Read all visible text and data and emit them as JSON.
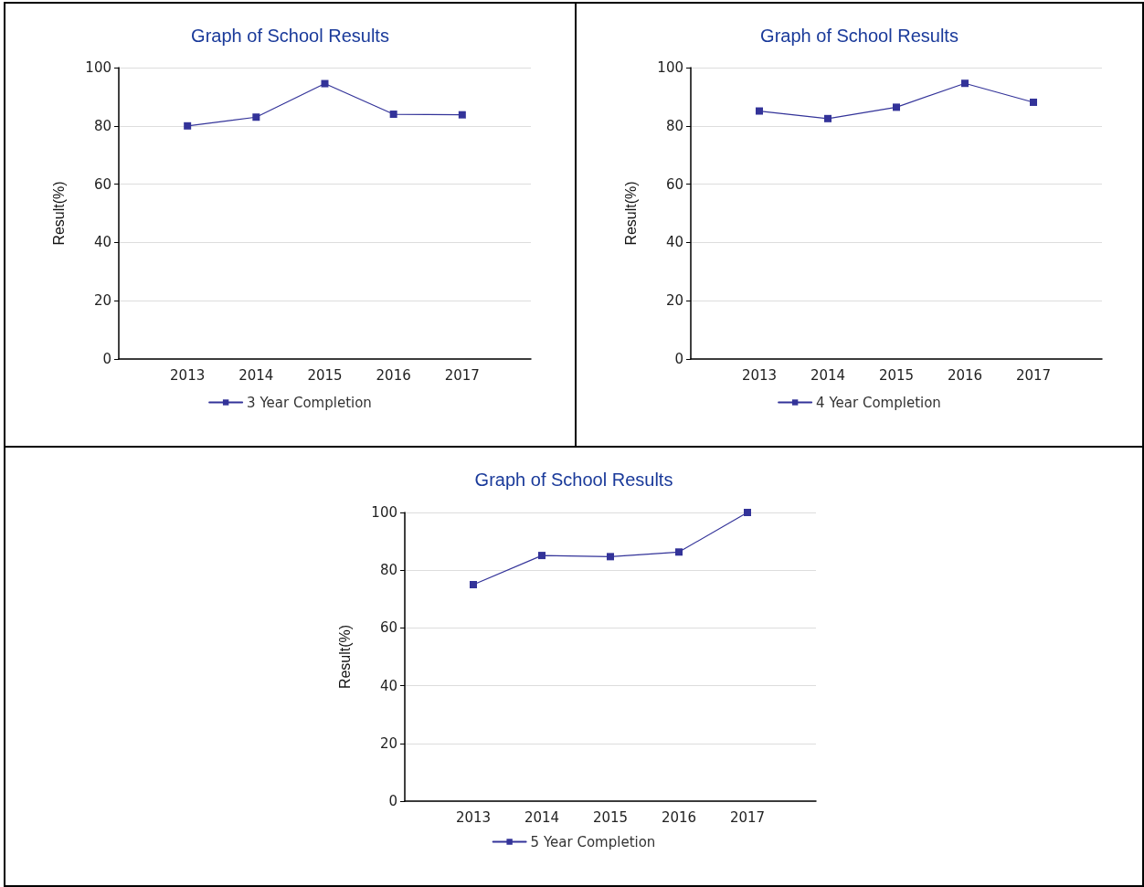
{
  "chart_data": [
    {
      "type": "line",
      "title": "Graph of School Results",
      "ylabel": "Result(%)",
      "x": [
        2013,
        2014,
        2015,
        2016,
        2017
      ],
      "xlim": [
        2012,
        2018
      ],
      "xticks": [
        2013,
        2014,
        2015,
        2016,
        2017
      ],
      "ylim": [
        0,
        100
      ],
      "yticks": [
        0,
        20,
        40,
        60,
        80,
        100
      ],
      "grid": "y",
      "legend": "bottom",
      "marker": "square",
      "line_style": "solid",
      "series": [
        {
          "name": "3 Year Completion",
          "color": "#333399",
          "values": [
            80,
            83,
            94.5,
            84,
            83.8
          ]
        }
      ]
    },
    {
      "type": "line",
      "title": "Graph of School Results",
      "ylabel": "Result(%)",
      "x": [
        2013,
        2014,
        2015,
        2016,
        2017
      ],
      "xlim": [
        2012,
        2018
      ],
      "xticks": [
        2013,
        2014,
        2015,
        2016,
        2017
      ],
      "ylim": [
        0,
        100
      ],
      "yticks": [
        0,
        20,
        40,
        60,
        80,
        100
      ],
      "grid": "y",
      "legend": "bottom",
      "marker": "square",
      "line_style": "solid",
      "series": [
        {
          "name": "4 Year Completion",
          "color": "#333399",
          "values": [
            85.1,
            82.5,
            86.4,
            94.6,
            88.1
          ]
        }
      ]
    },
    {
      "type": "line",
      "title": "Graph of School Results",
      "ylabel": "Result(%)",
      "x": [
        2013,
        2014,
        2015,
        2016,
        2017
      ],
      "xlim": [
        2012,
        2018
      ],
      "xticks": [
        2013,
        2014,
        2015,
        2016,
        2017
      ],
      "ylim": [
        0,
        100
      ],
      "yticks": [
        0,
        20,
        40,
        60,
        80,
        100
      ],
      "grid": "y",
      "legend": "bottom",
      "marker": "square",
      "line_style": "solid",
      "series": [
        {
          "name": "5 Year Completion",
          "color": "#333399",
          "values": [
            75,
            85.1,
            84.7,
            86.3,
            100
          ]
        }
      ]
    }
  ]
}
